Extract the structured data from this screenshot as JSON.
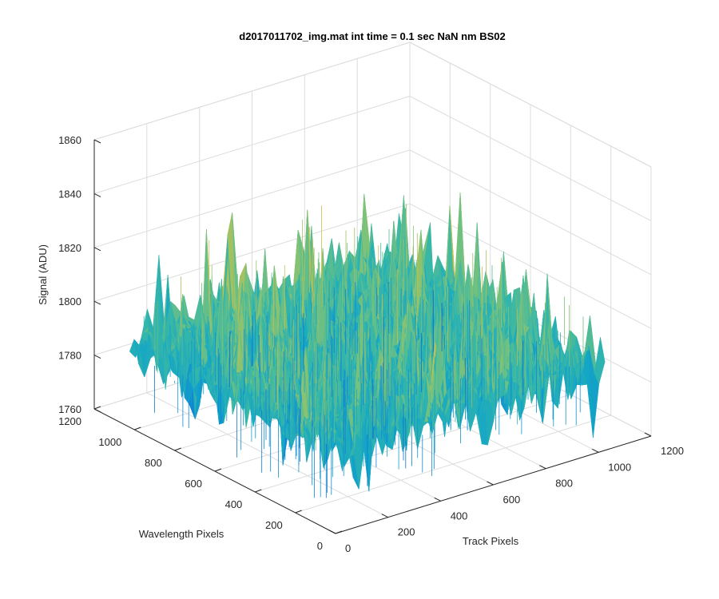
{
  "figure": {
    "title": "d2017011702_img.mat int time = 0.1 sec  NaN nm BS02"
  },
  "chart_data": {
    "type": "surface",
    "title": "d2017011702_img.mat int time = 0.1 sec  NaN nm BS02",
    "xlabel": "Track Pixels",
    "ylabel": "Wavelength Pixels",
    "zlabel": "Signal (ADU)",
    "xlim": [
      0,
      1200
    ],
    "ylim": [
      0,
      1200
    ],
    "zlim": [
      1760,
      1860
    ],
    "x_ticks": [
      0,
      200,
      400,
      600,
      800,
      1000,
      1200
    ],
    "y_ticks": [
      0,
      200,
      400,
      600,
      800,
      1000,
      1200
    ],
    "z_ticks": [
      1760,
      1780,
      1800,
      1820,
      1840,
      1860
    ],
    "x_tick_labels": [
      "0",
      "200",
      "400",
      "600",
      "800",
      "1000",
      "1200"
    ],
    "y_tick_labels": [
      "0",
      "200",
      "400",
      "600",
      "800",
      "1000",
      "1200"
    ],
    "z_tick_labels": [
      "1760",
      "1780",
      "1800",
      "1820",
      "1840",
      "1860"
    ],
    "surface": {
      "x_range": [
        0,
        1024
      ],
      "y_range": [
        0,
        1024
      ],
      "mean_signal": 1792,
      "noise_spread": 8,
      "min_signal": 1766,
      "max_signal": 1845,
      "colormap": "parula"
    },
    "grid": true,
    "box": true,
    "colors": {
      "grid": "#dcdcdc",
      "axis": "#262626",
      "colormap_stops": [
        "#0b5fc4",
        "#0f86d6",
        "#14a6c6",
        "#36b7a8",
        "#7cc27a",
        "#c7c04c"
      ]
    }
  }
}
